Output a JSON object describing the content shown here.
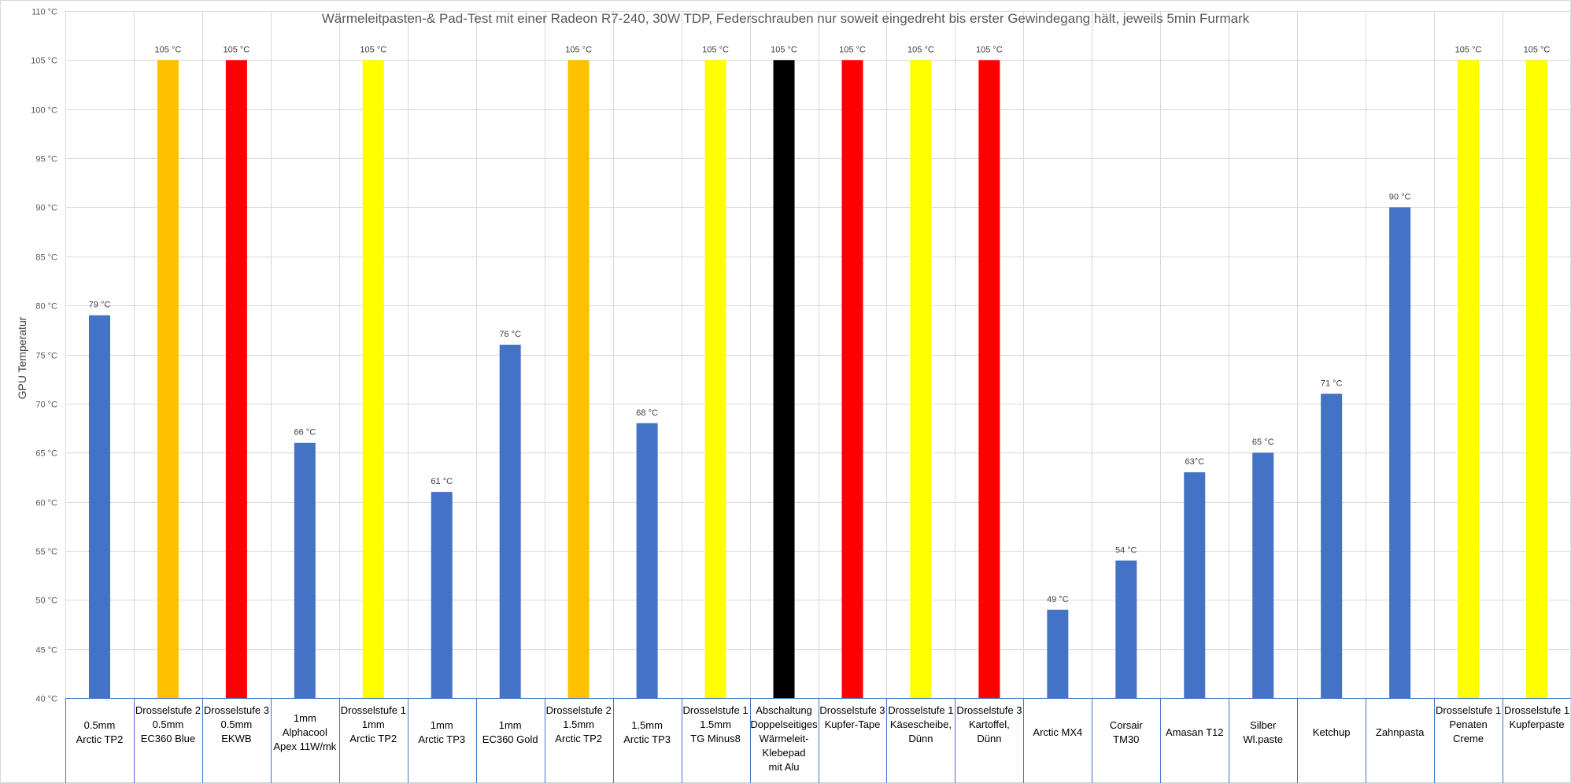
{
  "chart_data": {
    "type": "bar",
    "title": "Wärmeleitpasten-& Pad-Test mit einer Radeon R7-240, 30W TDP, Federschrauben nur soweit eingedreht bis erster Gewindegang hält, jeweils 5min Furmark",
    "ylabel": "GPU Temperatur",
    "ylim": [
      40,
      110
    ],
    "ytick_step": 5,
    "ytick_suffix": " °C",
    "grid": true,
    "colors": {
      "blue": "#4472c4",
      "orange": "#ffc000",
      "red": "#ff0000",
      "yellow": "#ffff00",
      "black": "#000000",
      "text": "#595959",
      "grid": "#d9d9d9",
      "axis": "#4472c4"
    },
    "categories": [
      {
        "lines": [
          "0.5mm",
          "Arctic TP2"
        ],
        "value": 79,
        "label": "79 °C",
        "color": "blue"
      },
      {
        "lines": [
          "Drosselstufe 2",
          "0.5mm",
          "EC360 Blue"
        ],
        "value": 105,
        "label": "105 °C",
        "color": "orange"
      },
      {
        "lines": [
          "Drosselstufe 3",
          "0.5mm",
          "EKWB"
        ],
        "value": 105,
        "label": "105 °C",
        "color": "red"
      },
      {
        "lines": [
          "1mm",
          "Alphacool",
          "Apex 11W/mk"
        ],
        "value": 66,
        "label": "66 °C",
        "color": "blue"
      },
      {
        "lines": [
          "Drosselstufe 1",
          "1mm",
          "Arctic TP2"
        ],
        "value": 105,
        "label": "105 °C",
        "color": "yellow"
      },
      {
        "lines": [
          "1mm",
          "Arctic TP3"
        ],
        "value": 61,
        "label": "61 °C",
        "color": "blue"
      },
      {
        "lines": [
          "1mm",
          "EC360 Gold"
        ],
        "value": 76,
        "label": "76 °C",
        "color": "blue"
      },
      {
        "lines": [
          "Drosselstufe 2",
          "1.5mm",
          "Arctic TP2"
        ],
        "value": 105,
        "label": "105 °C",
        "color": "orange"
      },
      {
        "lines": [
          "1.5mm",
          "Arctic TP3"
        ],
        "value": 68,
        "label": "68 °C",
        "color": "blue"
      },
      {
        "lines": [
          "Drosselstufe 1",
          "1.5mm",
          "TG Minus8"
        ],
        "value": 105,
        "label": "105 °C",
        "color": "yellow"
      },
      {
        "lines": [
          "Abschaltung",
          "Doppelseitiges",
          "Wärmeleit-",
          "Klebepad",
          "mit Alu"
        ],
        "value": 105,
        "label": "105 °C",
        "color": "black"
      },
      {
        "lines": [
          "Drosselstufe 3",
          "Kupfer-Tape"
        ],
        "value": 105,
        "label": "105 °C",
        "color": "red"
      },
      {
        "lines": [
          "Drosselstufe 1",
          "Käsescheibe,",
          "Dünn"
        ],
        "value": 105,
        "label": "105 °C",
        "color": "yellow"
      },
      {
        "lines": [
          "Drosselstufe 3",
          "Kartoffel,",
          "Dünn"
        ],
        "value": 105,
        "label": "105 °C",
        "color": "red"
      },
      {
        "lines": [
          "Arctic MX4"
        ],
        "value": 49,
        "label": "49 °C",
        "color": "blue"
      },
      {
        "lines": [
          "Corsair",
          "TM30"
        ],
        "value": 54,
        "label": "54 °C",
        "color": "blue"
      },
      {
        "lines": [
          "Amasan T12"
        ],
        "value": 63,
        "label": "63°C",
        "color": "blue"
      },
      {
        "lines": [
          "Silber",
          "Wl.paste"
        ],
        "value": 65,
        "label": "65 °C",
        "color": "blue"
      },
      {
        "lines": [
          "Ketchup"
        ],
        "value": 71,
        "label": "71 °C",
        "color": "blue"
      },
      {
        "lines": [
          "Zahnpasta"
        ],
        "value": 90,
        "label": "90 °C",
        "color": "blue"
      },
      {
        "lines": [
          "Drosselstufe 1",
          "Penaten",
          "Creme"
        ],
        "value": 105,
        "label": "105 °C",
        "color": "yellow"
      },
      {
        "lines": [
          "Drosselstufe 1",
          "Kupferpaste"
        ],
        "value": 105,
        "label": "105 °C",
        "color": "yellow"
      }
    ]
  }
}
